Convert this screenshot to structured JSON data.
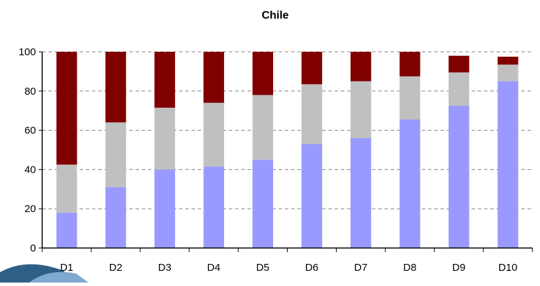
{
  "chart_data": {
    "type": "bar",
    "stacked": true,
    "title": "Chile",
    "xlabel": "",
    "ylabel": "",
    "ylim": [
      0,
      100
    ],
    "yticks": [
      0,
      20,
      40,
      60,
      80,
      100
    ],
    "grid": "horizontal-dashed",
    "legend": "none",
    "categories": [
      "D1",
      "D2",
      "D3",
      "D4",
      "D5",
      "D6",
      "D7",
      "D8",
      "D9",
      "D10"
    ],
    "series": [
      {
        "color": "#9999ff",
        "values": [
          18,
          31,
          40,
          41.5,
          45,
          53,
          56,
          65.5,
          72.5,
          85
        ]
      },
      {
        "color": "#c0c0c0",
        "values": [
          24.5,
          33,
          31.5,
          32.5,
          33,
          30.5,
          29,
          22,
          17,
          8.5
        ]
      },
      {
        "color": "#800000",
        "values": [
          57.5,
          36,
          28.5,
          26,
          22,
          16.5,
          15,
          12.5,
          8.5,
          4
        ]
      }
    ],
    "colors": {
      "axis": "#000000",
      "grid": "#808080",
      "background": "#ffffff"
    }
  }
}
